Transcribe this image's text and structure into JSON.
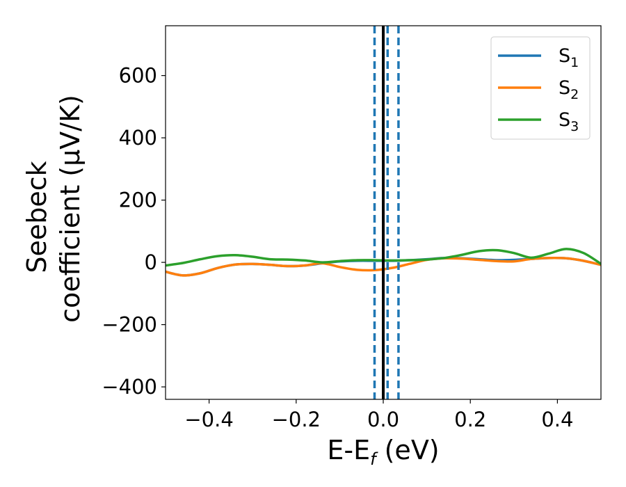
{
  "chart_data": {
    "type": "line",
    "xlabel": "E-E_f (eV)",
    "xlabel_parts": {
      "main": "E-E",
      "sub": "f",
      "unit": " (eV)"
    },
    "ylabel_line1": "Seebeck",
    "ylabel_line2": "coefficient  (μV/K)",
    "xlim": [
      -0.5,
      0.5
    ],
    "ylim": [
      -440,
      760
    ],
    "xticks": [
      -0.4,
      -0.2,
      0.0,
      0.2,
      0.4
    ],
    "xtick_labels": [
      "−0.4",
      "−0.2",
      "0.0",
      "0.2",
      "0.4"
    ],
    "yticks": [
      -400,
      -200,
      0,
      200,
      400,
      600
    ],
    "ytick_labels": [
      "−400",
      "−200",
      "0",
      "200",
      "400",
      "600"
    ],
    "legend_position": "top-right",
    "grid": false,
    "x": [
      -0.5,
      -0.46,
      -0.42,
      -0.38,
      -0.34,
      -0.3,
      -0.26,
      -0.22,
      -0.18,
      -0.14,
      -0.1,
      -0.06,
      -0.02,
      0.02,
      0.06,
      0.1,
      0.14,
      0.18,
      0.22,
      0.26,
      0.3,
      0.34,
      0.38,
      0.42,
      0.46,
      0.5
    ],
    "series": [
      {
        "name_main": "S",
        "name_sub": "1",
        "color": "#1f77b4",
        "values": [
          -30,
          -42,
          -35,
          -18,
          -7,
          -5,
          -8,
          -12,
          -10,
          -3,
          3,
          5,
          5,
          5,
          7,
          10,
          14,
          13,
          10,
          7,
          8,
          11,
          14,
          13,
          5,
          -8
        ]
      },
      {
        "name_main": "S",
        "name_sub": "2",
        "color": "#ff7f0e",
        "values": [
          -30,
          -42,
          -35,
          -18,
          -7,
          -5,
          -8,
          -12,
          -10,
          -3,
          -15,
          -24,
          -25,
          -18,
          -5,
          8,
          13,
          12,
          8,
          4,
          3,
          11,
          14,
          13,
          5,
          -8
        ]
      },
      {
        "name_main": "S",
        "name_sub": "3",
        "color": "#2ca02c",
        "values": [
          -10,
          -2,
          10,
          20,
          23,
          18,
          10,
          9,
          6,
          0,
          4,
          7,
          7,
          6,
          7,
          9,
          14,
          24,
          36,
          39,
          30,
          15,
          28,
          43,
          30,
          -5
        ]
      }
    ],
    "vlines": [
      {
        "x": 0.0,
        "color": "#000000",
        "style": "solid"
      },
      {
        "x": -0.02,
        "color": "#1f77b4",
        "style": "dashed"
      },
      {
        "x": 0.01,
        "color": "#1f77b4",
        "style": "dashed"
      },
      {
        "x": 0.035,
        "color": "#1f77b4",
        "style": "dashed"
      }
    ]
  }
}
